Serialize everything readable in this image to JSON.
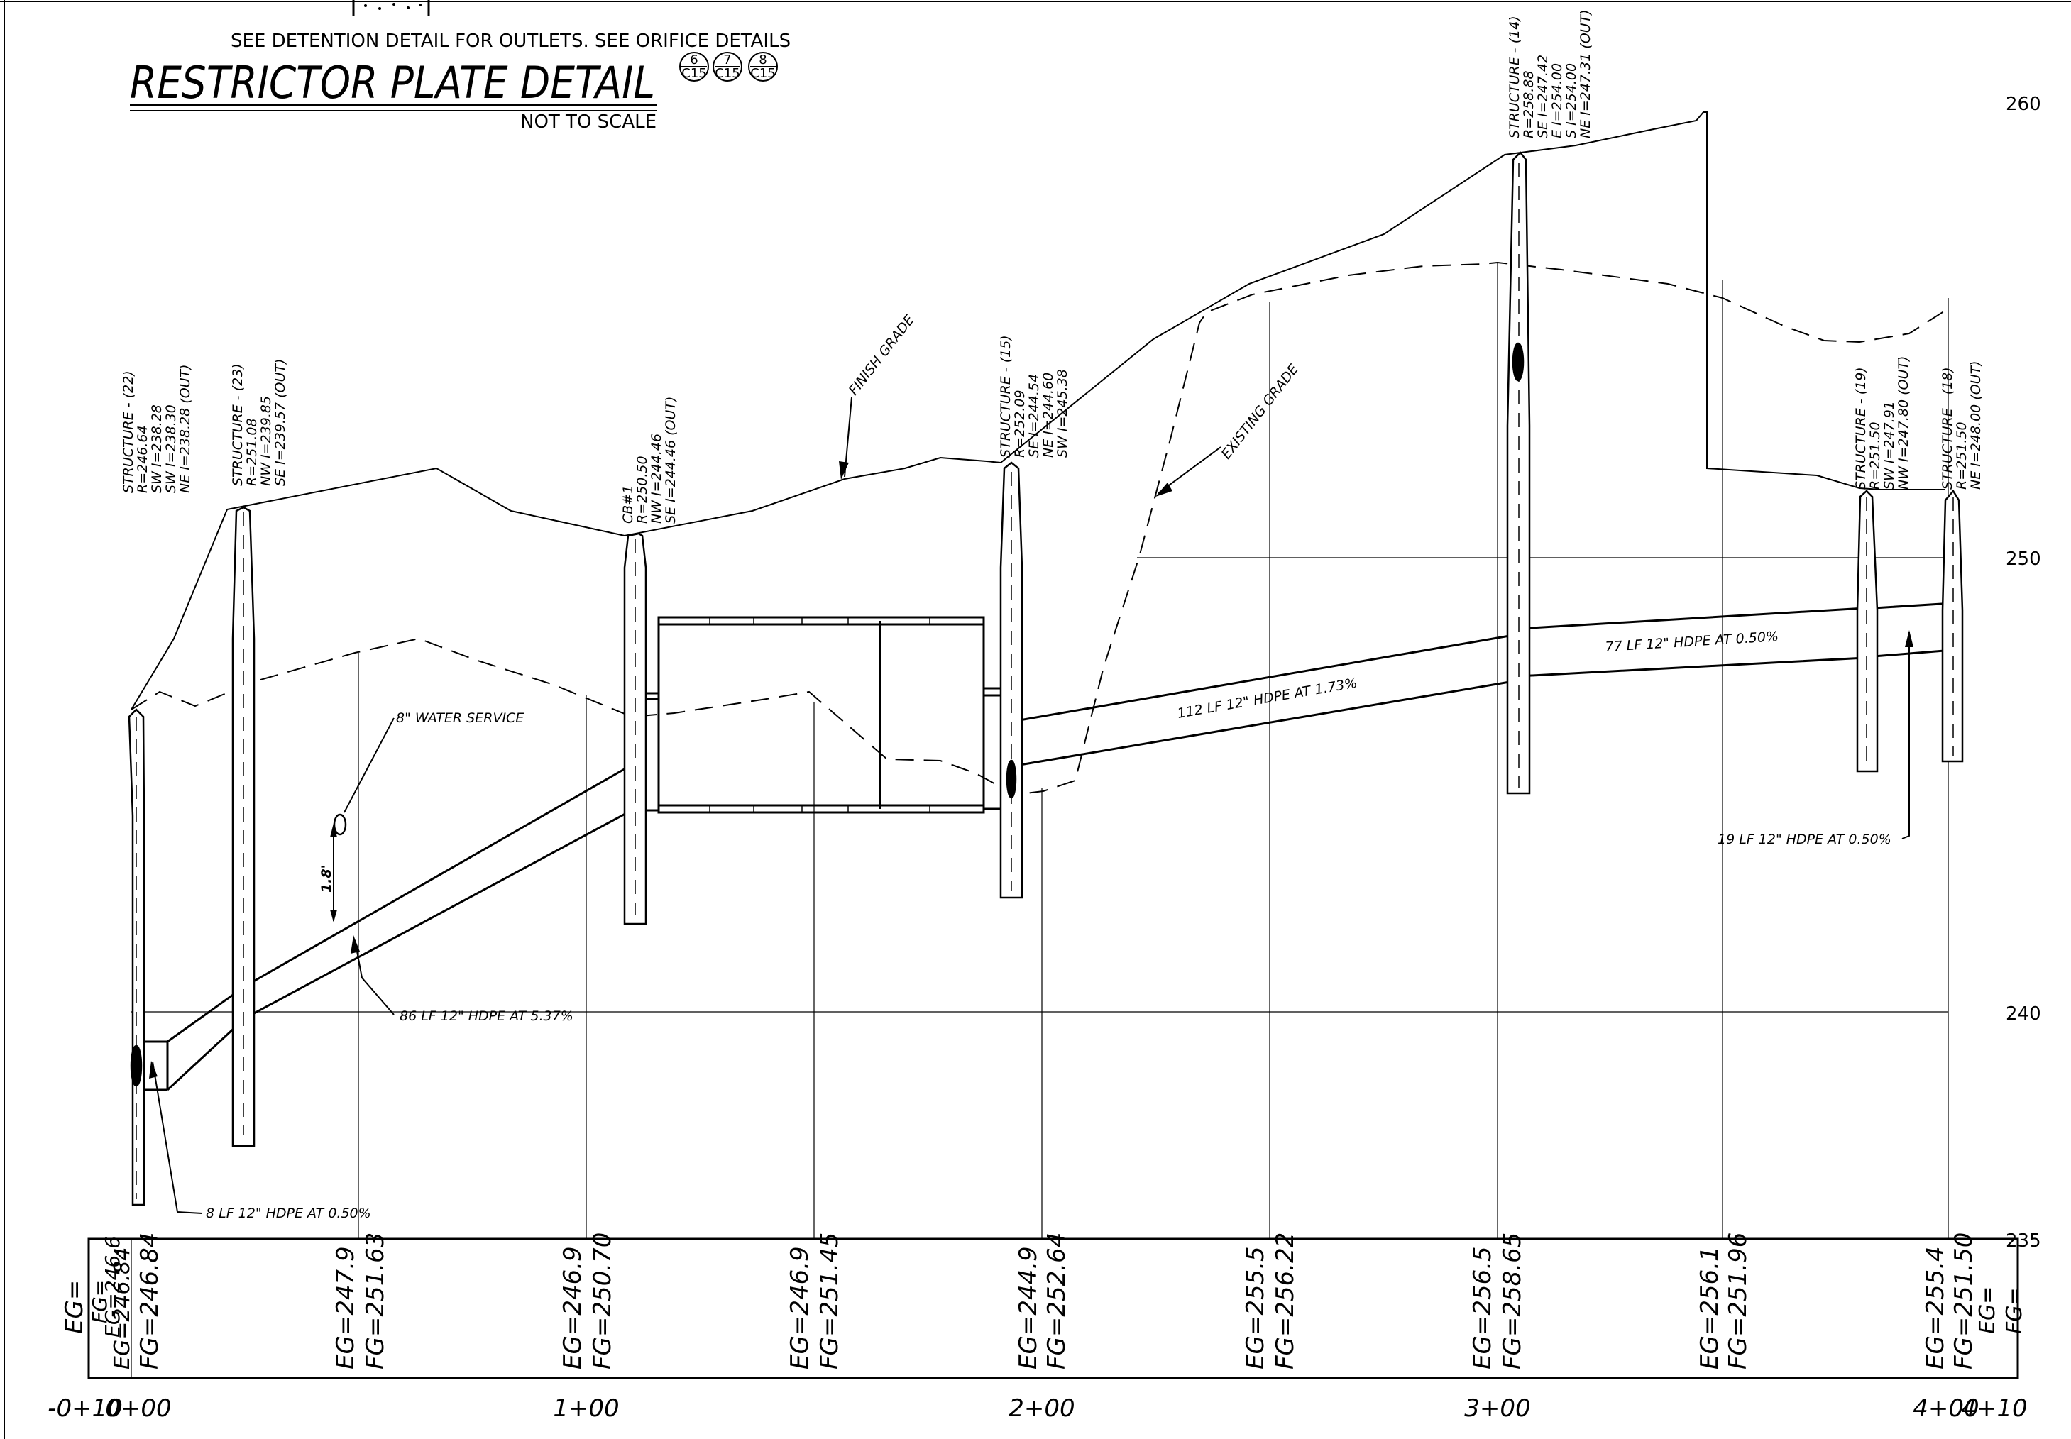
{
  "header": {
    "note": "SEE DETENTION DETAIL FOR OUTLETS. SEE ORIFICE DETAILS",
    "title": "RESTRICTOR PLATE DETAIL",
    "scale": "NOT TO SCALE",
    "refs": [
      {
        "num": "6",
        "sheet": "C15"
      },
      {
        "num": "7",
        "sheet": "C15"
      },
      {
        "num": "8",
        "sheet": "C15"
      }
    ]
  },
  "elevation_labels": [
    "260",
    "250",
    "240",
    "235"
  ],
  "station_labels": [
    "-0+10",
    "0+00",
    "1+00",
    "2+00",
    "3+00",
    "4+00",
    "4+10"
  ],
  "structures": [
    {
      "id": "s22",
      "lines": [
        "STRUCTURE - (22)",
        "R=246.64",
        "SW I=238.28",
        "SW I=238.30",
        "NE I=238.28 (OUT)"
      ]
    },
    {
      "id": "s23",
      "lines": [
        "STRUCTURE - (23)",
        "R=251.08",
        "NW I=239.85",
        "SE I=239.57 (OUT)"
      ]
    },
    {
      "id": "cb1",
      "lines": [
        "CB#1",
        "R=250.50",
        "NW I=244.46",
        "SE I=244.46 (OUT)"
      ]
    },
    {
      "id": "s15",
      "lines": [
        "STRUCTURE - (15)",
        "R=252.09",
        "SE I=244.54",
        "NE I=244.60",
        "SW I=245.38"
      ]
    },
    {
      "id": "s14",
      "lines": [
        "STRUCTURE - (14)",
        "R=258.88",
        "SE I=247.42",
        "E I=254.00",
        "S I=254.00",
        "NE I=247.31 (OUT)"
      ]
    },
    {
      "id": "s19",
      "lines": [
        "STRUCTURE - (19)",
        "R=251.50",
        "SW I=247.91",
        "NW I=247.80 (OUT)"
      ]
    },
    {
      "id": "s18",
      "lines": [
        "STRUCTURE - (18)",
        "R=251.50",
        "NE I=248.00 (OUT)"
      ]
    }
  ],
  "callouts": {
    "finish_grade": "FINISH GRADE",
    "existing_grade": "EXISTING GRADE",
    "water_service": "8\" WATER SERVICE",
    "clearance": "1.8'",
    "pipe_86": "86 LF 12\" HDPE AT 5.37%",
    "pipe_8": "8 LF 12\" HDPE AT 0.50%",
    "pipe_112": "112 LF 12\" HDPE AT 1.73%",
    "pipe_77": "77 LF 12\" HDPE AT 0.50%",
    "pipe_19": "19 LF 12\" HDPE AT 0.50%"
  },
  "grade_table": [
    {
      "eg": "EG=",
      "fg": ""
    },
    {
      "eg": "EG=246.6",
      "fg": "FG="
    },
    {
      "eg": "EG=246.84",
      "fg": "FG=246.84"
    },
    {
      "eg": "EG=247.9",
      "fg": "FG=251.63"
    },
    {
      "eg": "EG=246.9",
      "fg": "FG=250.70"
    },
    {
      "eg": "EG=246.9",
      "fg": "FG=251.45"
    },
    {
      "eg": "EG=244.9",
      "fg": "FG=252.64"
    },
    {
      "eg": "EG=255.5",
      "fg": "FG=256.22"
    },
    {
      "eg": "EG=256.5",
      "fg": "FG=258.65"
    },
    {
      "eg": "EG=256.1",
      "fg": "FG=251.96"
    },
    {
      "eg": "EG=255.4",
      "fg": "FG=251.50"
    },
    {
      "eg": "EG=",
      "fg": "FG="
    }
  ]
}
